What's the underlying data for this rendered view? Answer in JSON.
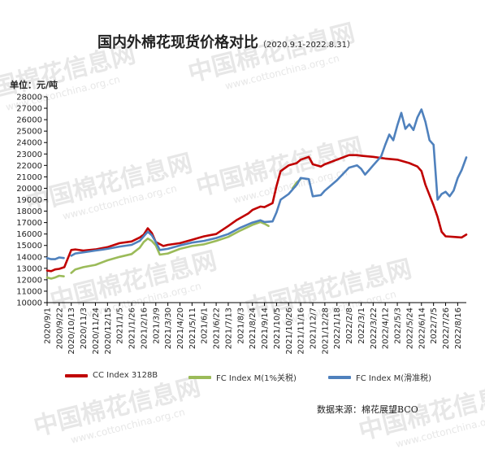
{
  "header": {
    "title": "国内外棉花现货价格对比",
    "subtitle": "（2020.9.1-2022.8.31）",
    "unit_label": "单位：元/吨"
  },
  "watermark": {
    "text": "中国棉花信息网",
    "url": "www.cottonchina.org.cn"
  },
  "source_note": "数据来源：棉花展望BCO",
  "colors": {
    "cc": "#c00000",
    "fc_1pct": "#9bbb59",
    "fc_slide": "#4f81bd"
  },
  "chart_data": {
    "type": "line",
    "title": "国内外棉花现货价格对比",
    "ylabel": "单位：元/吨",
    "xlabel": "",
    "ylim": [
      10000,
      28000
    ],
    "yticks": [
      10000,
      11000,
      12000,
      13000,
      14000,
      15000,
      16000,
      17000,
      18000,
      19000,
      20000,
      21000,
      22000,
      23000,
      24000,
      25000,
      26000,
      27000,
      28000
    ],
    "xtick_labels": [
      "2020/9/1",
      "2020/9/22",
      "2020/10/13",
      "2020/11/3",
      "2020/11/24",
      "2020/12/15",
      "2021/1/5",
      "2021/1/26",
      "2021/2/16",
      "2021/3/9",
      "2021/3/30",
      "2021/4/20",
      "2021/5/11",
      "2021/6/1",
      "2021/6/22",
      "2021/7/13",
      "2021/8/3",
      "2021/8/24",
      "2021/9/14",
      "2021/10/5",
      "2021/10/26",
      "2021/11/16",
      "2021/12/7",
      "2021/12/28",
      "2022/1/18",
      "2022/2/8",
      "2022/3/1",
      "2022/3/22",
      "2022/4/12",
      "2022/5/3",
      "2022/5/24",
      "2022/6/14",
      "2022/7/5",
      "2022/7/26",
      "2022/8/16"
    ],
    "x_start": "2020-09-01",
    "x_end": "2022-08-31",
    "grid": false,
    "legend_position": "bottom",
    "series": [
      {
        "name": "CC Index 3128B",
        "color": "#c00000",
        "points": [
          [
            "2020-09-01",
            12800
          ],
          [
            "2020-09-08",
            12750
          ],
          [
            "2020-09-15",
            12900
          ],
          [
            "2020-09-22",
            12950
          ],
          [
            "2020-10-01",
            13100
          ],
          [
            "2020-10-13",
            14600
          ],
          [
            "2020-10-20",
            14650
          ],
          [
            "2020-11-03",
            14550
          ],
          [
            "2020-11-24",
            14650
          ],
          [
            "2020-12-15",
            14850
          ],
          [
            "2021-01-05",
            15200
          ],
          [
            "2021-01-26",
            15350
          ],
          [
            "2021-02-09",
            15700
          ],
          [
            "2021-02-16",
            15950
          ],
          [
            "2021-02-23",
            16500
          ],
          [
            "2021-03-02",
            16100
          ],
          [
            "2021-03-09",
            15300
          ],
          [
            "2021-03-22",
            14950
          ],
          [
            "2021-03-30",
            15050
          ],
          [
            "2021-04-20",
            15200
          ],
          [
            "2021-05-11",
            15500
          ],
          [
            "2021-05-25",
            15700
          ],
          [
            "2021-06-01",
            15800
          ],
          [
            "2021-06-22",
            16000
          ],
          [
            "2021-07-13",
            16700
          ],
          [
            "2021-07-27",
            17200
          ],
          [
            "2021-08-03",
            17400
          ],
          [
            "2021-08-17",
            17800
          ],
          [
            "2021-08-24",
            18100
          ],
          [
            "2021-09-07",
            18400
          ],
          [
            "2021-09-14",
            18350
          ],
          [
            "2021-09-28",
            18700
          ],
          [
            "2021-10-05",
            20200
          ],
          [
            "2021-10-12",
            21500
          ],
          [
            "2021-10-26",
            22000
          ],
          [
            "2021-11-09",
            22200
          ],
          [
            "2021-11-16",
            22500
          ],
          [
            "2021-11-30",
            22750
          ],
          [
            "2021-12-07",
            22100
          ],
          [
            "2021-12-21",
            21900
          ],
          [
            "2021-12-28",
            22100
          ],
          [
            "2022-01-18",
            22500
          ],
          [
            "2022-02-08",
            22900
          ],
          [
            "2022-02-22",
            22900
          ],
          [
            "2022-03-01",
            22850
          ],
          [
            "2022-03-22",
            22750
          ],
          [
            "2022-04-12",
            22600
          ],
          [
            "2022-05-03",
            22500
          ],
          [
            "2022-05-24",
            22200
          ],
          [
            "2022-06-07",
            21900
          ],
          [
            "2022-06-14",
            21500
          ],
          [
            "2022-06-21",
            20300
          ],
          [
            "2022-07-05",
            18500
          ],
          [
            "2022-07-12",
            17500
          ],
          [
            "2022-07-19",
            16200
          ],
          [
            "2022-07-26",
            15800
          ],
          [
            "2022-08-09",
            15750
          ],
          [
            "2022-08-23",
            15700
          ],
          [
            "2022-08-31",
            15950
          ]
        ]
      },
      {
        "name": "FC Index M(1%关税)",
        "color": "#9bbb59",
        "segments": [
          [
            [
              "2020-09-01",
              12200
            ],
            [
              "2020-09-08",
              12100
            ],
            [
              "2020-09-15",
              12200
            ],
            [
              "2020-09-22",
              12350
            ],
            [
              "2020-09-30",
              12300
            ]
          ],
          [
            [
              "2020-10-13",
              12600
            ],
            [
              "2020-10-20",
              12900
            ],
            [
              "2020-11-03",
              13100
            ],
            [
              "2020-11-24",
              13300
            ],
            [
              "2020-12-15",
              13700
            ],
            [
              "2021-01-05",
              14000
            ],
            [
              "2021-01-26",
              14250
            ],
            [
              "2021-02-09",
              14800
            ],
            [
              "2021-02-16",
              15300
            ],
            [
              "2021-02-23",
              15600
            ],
            [
              "2021-03-02",
              15400
            ],
            [
              "2021-03-09",
              15000
            ],
            [
              "2021-03-16",
              14200
            ],
            [
              "2021-03-30",
              14300
            ],
            [
              "2021-04-20",
              14700
            ],
            [
              "2021-05-11",
              14950
            ],
            [
              "2021-06-01",
              15100
            ],
            [
              "2021-06-22",
              15400
            ],
            [
              "2021-07-13",
              15750
            ],
            [
              "2021-08-03",
              16300
            ],
            [
              "2021-08-24",
              16800
            ],
            [
              "2021-09-07",
              17050
            ],
            [
              "2021-09-14",
              16900
            ],
            [
              "2021-09-21",
              16700
            ]
          ],
          [
            [
              "2021-11-02",
              20000
            ],
            [
              "2021-11-09",
              20500
            ],
            [
              "2021-11-16",
              20800
            ]
          ]
        ]
      },
      {
        "name": "FC Index M(滑准税)",
        "color": "#4f81bd",
        "segments": [
          [
            [
              "2020-09-01",
              13900
            ],
            [
              "2020-09-08",
              13800
            ],
            [
              "2020-09-15",
              13800
            ],
            [
              "2020-09-22",
              13950
            ],
            [
              "2020-09-30",
              13900
            ]
          ],
          [
            [
              "2020-10-13",
              14100
            ],
            [
              "2020-10-20",
              14300
            ],
            [
              "2020-11-03",
              14400
            ],
            [
              "2020-11-24",
              14550
            ],
            [
              "2020-12-15",
              14700
            ],
            [
              "2021-01-05",
              14900
            ],
            [
              "2021-01-26",
              15050
            ],
            [
              "2021-02-09",
              15400
            ],
            [
              "2021-02-16",
              15800
            ],
            [
              "2021-02-23",
              16200
            ],
            [
              "2021-03-02",
              15900
            ],
            [
              "2021-03-09",
              15300
            ],
            [
              "2021-03-16",
              14600
            ],
            [
              "2021-03-30",
              14700
            ],
            [
              "2021-04-20",
              15000
            ],
            [
              "2021-05-11",
              15250
            ],
            [
              "2021-06-01",
              15400
            ],
            [
              "2021-06-22",
              15650
            ],
            [
              "2021-07-13",
              16000
            ],
            [
              "2021-08-03",
              16550
            ],
            [
              "2021-08-24",
              17000
            ],
            [
              "2021-09-07",
              17200
            ],
            [
              "2021-09-14",
              17050
            ],
            [
              "2021-09-28",
              17100
            ],
            [
              "2021-10-05",
              17900
            ],
            [
              "2021-10-12",
              19000
            ],
            [
              "2021-10-26",
              19500
            ],
            [
              "2021-11-09",
              20300
            ],
            [
              "2021-11-16",
              20900
            ],
            [
              "2021-11-30",
              20800
            ],
            [
              "2021-12-07",
              19300
            ],
            [
              "2021-12-21",
              19400
            ],
            [
              "2021-12-28",
              19800
            ],
            [
              "2022-01-18",
              20700
            ],
            [
              "2022-02-08",
              21800
            ],
            [
              "2022-02-22",
              22000
            ],
            [
              "2022-03-01",
              21700
            ],
            [
              "2022-03-08",
              21200
            ],
            [
              "2022-03-15",
              21600
            ],
            [
              "2022-03-22",
              22000
            ],
            [
              "2022-04-05",
              22800
            ],
            [
              "2022-04-12",
              23800
            ],
            [
              "2022-04-19",
              24700
            ],
            [
              "2022-04-26",
              24200
            ],
            [
              "2022-05-03",
              25500
            ],
            [
              "2022-05-10",
              26600
            ],
            [
              "2022-05-17",
              25200
            ],
            [
              "2022-05-24",
              25600
            ],
            [
              "2022-05-31",
              25100
            ],
            [
              "2022-06-07",
              26200
            ],
            [
              "2022-06-14",
              26900
            ],
            [
              "2022-06-21",
              25800
            ],
            [
              "2022-06-28",
              24200
            ],
            [
              "2022-07-05",
              23800
            ],
            [
              "2022-07-12",
              19000
            ],
            [
              "2022-07-19",
              19500
            ],
            [
              "2022-07-26",
              19700
            ],
            [
              "2022-08-02",
              19300
            ],
            [
              "2022-08-09",
              19800
            ],
            [
              "2022-08-16",
              20900
            ],
            [
              "2022-08-23",
              21600
            ],
            [
              "2022-08-31",
              22700
            ]
          ]
        ]
      }
    ]
  }
}
